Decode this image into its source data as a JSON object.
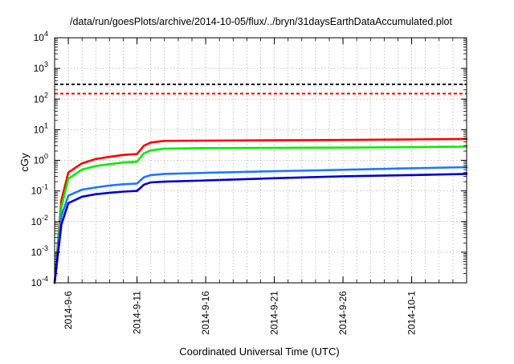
{
  "chart_data": {
    "type": "line",
    "title": "/data/run/goesPlots/archive/2014-10-05/flux/../bryn/31daysEarthDataAccumulated.plot",
    "xlabel": "Coordinated Universal Time (UTC)",
    "ylabel": "cGy",
    "x_axis": {
      "type": "date",
      "range": [
        "2014-09-05",
        "2014-10-05"
      ],
      "tick_labels": [
        "2014-9-6",
        "2014-9-11",
        "2014-9-16",
        "2014-9-21",
        "2014-9-26",
        "2014-10-1"
      ]
    },
    "y_axis": {
      "scale": "log",
      "range": [
        0.0001,
        10000
      ],
      "tick_labels": [
        {
          "base": "10",
          "exp": "-4"
        },
        {
          "base": "10",
          "exp": "-3"
        },
        {
          "base": "10",
          "exp": "-2"
        },
        {
          "base": "10",
          "exp": "-1"
        },
        {
          "base": "10",
          "exp": "0"
        },
        {
          "base": "10",
          "exp": "1"
        },
        {
          "base": "10",
          "exp": "2"
        },
        {
          "base": "10",
          "exp": "3"
        },
        {
          "base": "10",
          "exp": "4"
        }
      ]
    },
    "grid": true,
    "thresholds": [
      {
        "y": 300,
        "color": "#000000",
        "style": "dashed"
      },
      {
        "y": 150,
        "color": "#ff0000",
        "style": "dashed"
      }
    ],
    "series": [
      {
        "color": "#ff0000",
        "x": [
          "2014-09-05",
          "2014-09-05 12:00",
          "2014-09-06",
          "2014-09-07",
          "2014-09-08",
          "2014-09-09",
          "2014-09-10",
          "2014-09-11",
          "2014-09-11 12:00",
          "2014-09-12",
          "2014-09-13",
          "2014-09-16",
          "2014-09-21",
          "2014-09-26",
          "2014-10-01",
          "2014-10-05"
        ],
        "values": [
          0.0001,
          0.05,
          0.4,
          0.8,
          1.1,
          1.3,
          1.5,
          1.6,
          3.0,
          3.8,
          4.3,
          4.4,
          4.5,
          4.6,
          4.8,
          5.0
        ]
      },
      {
        "color": "#00ee00",
        "x": [
          "2014-09-05",
          "2014-09-05 12:00",
          "2014-09-06",
          "2014-09-07",
          "2014-09-08",
          "2014-09-09",
          "2014-09-10",
          "2014-09-11",
          "2014-09-11 12:00",
          "2014-09-12",
          "2014-09-13",
          "2014-09-16",
          "2014-09-21",
          "2014-09-26",
          "2014-10-01",
          "2014-10-05"
        ],
        "values": [
          0.0001,
          0.03,
          0.25,
          0.5,
          0.65,
          0.75,
          0.85,
          0.9,
          1.7,
          2.1,
          2.4,
          2.5,
          2.55,
          2.6,
          2.7,
          2.8
        ]
      },
      {
        "color": "#1e78ff",
        "x": [
          "2014-09-05",
          "2014-09-05 12:00",
          "2014-09-06",
          "2014-09-07",
          "2014-09-08",
          "2014-09-09",
          "2014-09-10",
          "2014-09-11",
          "2014-09-11 12:00",
          "2014-09-12",
          "2014-09-13",
          "2014-09-16",
          "2014-09-21",
          "2014-09-26",
          "2014-10-01",
          "2014-10-05"
        ],
        "values": [
          0.0001,
          0.015,
          0.07,
          0.11,
          0.13,
          0.15,
          0.165,
          0.175,
          0.28,
          0.33,
          0.36,
          0.39,
          0.44,
          0.49,
          0.55,
          0.6
        ]
      },
      {
        "color": "#0000cc",
        "x": [
          "2014-09-05",
          "2014-09-05 12:00",
          "2014-09-06",
          "2014-09-07",
          "2014-09-08",
          "2014-09-09",
          "2014-09-10",
          "2014-09-11",
          "2014-09-11 12:00",
          "2014-09-12",
          "2014-09-13",
          "2014-09-16",
          "2014-09-21",
          "2014-09-26",
          "2014-10-01",
          "2014-10-05"
        ],
        "values": [
          0.0001,
          0.008,
          0.04,
          0.065,
          0.078,
          0.087,
          0.095,
          0.1,
          0.16,
          0.19,
          0.2,
          0.22,
          0.26,
          0.3,
          0.33,
          0.36
        ]
      }
    ]
  }
}
